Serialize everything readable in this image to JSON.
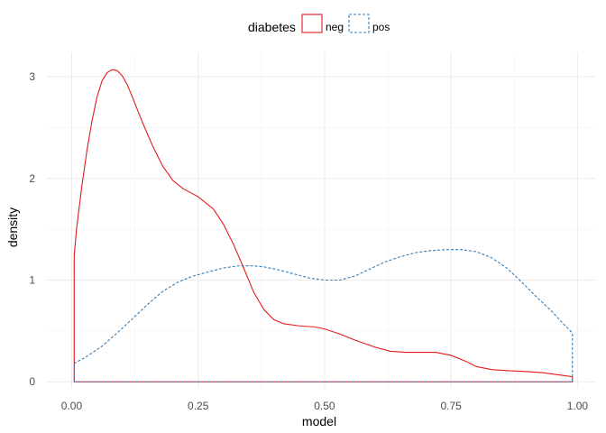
{
  "chart_data": {
    "type": "line",
    "xlabel": "model",
    "ylabel": "density",
    "xlim": [
      -0.049,
      1.035
    ],
    "ylim": [
      -0.06,
      3.24
    ],
    "xticks": [
      0.0,
      0.25,
      0.5,
      0.75,
      1.0
    ],
    "xtick_labels": [
      "0.00",
      "0.25",
      "0.50",
      "0.75",
      "1.00"
    ],
    "yticks": [
      0,
      1,
      2,
      3
    ],
    "ytick_labels": [
      "0",
      "1",
      "2",
      "3"
    ],
    "grid": true,
    "legend": {
      "title": "diabetes",
      "position": "top"
    },
    "series": [
      {
        "name": "neg",
        "color": "#e41a1c",
        "dash": "solid",
        "x": [
          0.005,
          0.005,
          0.01,
          0.02,
          0.03,
          0.04,
          0.05,
          0.06,
          0.07,
          0.08,
          0.09,
          0.1,
          0.11,
          0.12,
          0.14,
          0.16,
          0.18,
          0.2,
          0.22,
          0.25,
          0.28,
          0.3,
          0.32,
          0.34,
          0.36,
          0.38,
          0.4,
          0.42,
          0.45,
          0.48,
          0.5,
          0.53,
          0.56,
          0.6,
          0.63,
          0.66,
          0.7,
          0.72,
          0.75,
          0.78,
          0.8,
          0.83,
          0.86,
          0.9,
          0.93,
          0.96,
          0.99,
          0.99
        ],
        "y": [
          0,
          1.24,
          1.52,
          1.92,
          2.27,
          2.56,
          2.8,
          2.96,
          3.04,
          3.07,
          3.06,
          3.01,
          2.92,
          2.8,
          2.55,
          2.32,
          2.12,
          1.98,
          1.9,
          1.82,
          1.7,
          1.55,
          1.35,
          1.12,
          0.88,
          0.71,
          0.61,
          0.57,
          0.55,
          0.54,
          0.52,
          0.47,
          0.41,
          0.34,
          0.3,
          0.29,
          0.29,
          0.29,
          0.26,
          0.2,
          0.15,
          0.12,
          0.11,
          0.1,
          0.09,
          0.07,
          0.05,
          0
        ]
      },
      {
        "name": "pos",
        "color": "#377eb8",
        "dash": "dashed",
        "x": [
          0.005,
          0.005,
          0.03,
          0.06,
          0.09,
          0.12,
          0.15,
          0.18,
          0.21,
          0.24,
          0.27,
          0.3,
          0.33,
          0.36,
          0.38,
          0.41,
          0.44,
          0.47,
          0.5,
          0.53,
          0.56,
          0.59,
          0.62,
          0.65,
          0.68,
          0.71,
          0.74,
          0.77,
          0.8,
          0.83,
          0.86,
          0.89,
          0.92,
          0.95,
          0.97,
          0.99,
          0.99
        ],
        "y": [
          0,
          0.18,
          0.25,
          0.35,
          0.48,
          0.62,
          0.76,
          0.89,
          0.98,
          1.04,
          1.08,
          1.12,
          1.14,
          1.14,
          1.13,
          1.1,
          1.06,
          1.02,
          1.0,
          1.0,
          1.04,
          1.11,
          1.18,
          1.23,
          1.27,
          1.29,
          1.3,
          1.3,
          1.28,
          1.22,
          1.12,
          0.98,
          0.83,
          0.69,
          0.58,
          0.48,
          0
        ]
      }
    ]
  }
}
